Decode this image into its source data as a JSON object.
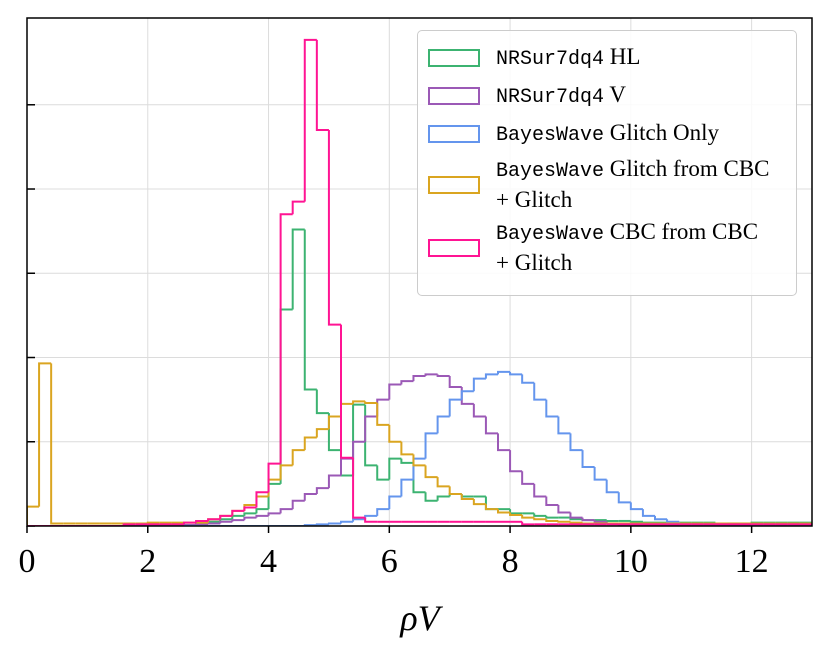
{
  "chart_data": {
    "type": "histogram",
    "xlabel": "ρV",
    "bins": [
      0,
      0.2,
      0.4,
      0.6,
      0.8,
      1.0,
      1.2,
      1.4,
      1.6,
      1.8,
      2.0,
      2.2,
      2.4,
      2.6,
      2.8,
      3.0,
      3.2,
      3.4,
      3.6,
      3.8,
      4.0,
      4.2,
      4.4,
      4.6,
      4.8,
      5.0,
      5.2,
      5.4,
      5.6,
      5.8,
      6.0,
      6.2,
      6.4,
      6.6,
      6.8,
      7.0,
      7.2,
      7.4,
      7.6,
      7.8,
      8.0,
      8.2,
      8.4,
      8.6,
      8.8,
      9.0,
      9.2,
      9.4,
      9.6,
      9.8,
      10.0,
      10.2,
      10.4,
      10.6,
      10.8,
      11.0,
      11.2,
      11.4,
      11.6,
      11.8,
      12.0,
      12.2,
      12.4,
      12.6,
      12.8,
      13.0
    ],
    "xlim": [
      0,
      13
    ],
    "xticks": [
      0,
      2,
      4,
      6,
      8,
      10,
      12
    ],
    "ylim": [
      0,
      6.03
    ],
    "yticks": [
      0,
      1,
      2,
      3,
      4,
      5
    ],
    "grid": true,
    "series": [
      {
        "name": "NRSur7dq4 HL",
        "color": "#3cb371",
        "values": [
          0,
          0,
          0,
          0,
          0,
          0,
          0,
          0,
          0,
          0,
          0.01,
          0.01,
          0.01,
          0.01,
          0.03,
          0.05,
          0.08,
          0.12,
          0.15,
          0.2,
          0.5,
          2.57,
          3.52,
          1.62,
          1.34,
          0.9,
          0.6,
          1.44,
          0.72,
          0.55,
          0.8,
          0.75,
          0.4,
          0.3,
          0.35,
          0.38,
          0.35,
          0.35,
          0.2,
          0.2,
          0.15,
          0.15,
          0.12,
          0.1,
          0.1,
          0.08,
          0.07,
          0.07,
          0.06,
          0.06,
          0.05,
          0.04,
          0.04,
          0.04,
          0.04,
          0.04,
          0.04,
          0.03,
          0.03,
          0.03,
          0.04,
          0.04,
          0.04,
          0.04,
          0.04
        ]
      },
      {
        "name": "NRSur7dq4 V",
        "color": "#9b59b6",
        "values": [
          0,
          0,
          0,
          0,
          0,
          0,
          0,
          0,
          0,
          0,
          0,
          0,
          0,
          0.01,
          0.02,
          0.03,
          0.05,
          0.07,
          0.1,
          0.12,
          0.15,
          0.2,
          0.3,
          0.38,
          0.45,
          0.6,
          0.8,
          1.0,
          1.3,
          1.5,
          1.68,
          1.72,
          1.78,
          1.8,
          1.78,
          1.65,
          1.45,
          1.3,
          1.1,
          0.9,
          0.65,
          0.5,
          0.35,
          0.25,
          0.16,
          0.1,
          0.07,
          0.05,
          0.03,
          0.02,
          0.01,
          0.01,
          0.01,
          0.01,
          0.01,
          0.01,
          0.01,
          0.01,
          0.01,
          0.01,
          0.01,
          0.01,
          0.01,
          0.01,
          0.01
        ]
      },
      {
        "name": "BayesWave Glitch Only",
        "color": "#6495ed",
        "values": [
          0,
          0,
          0,
          0,
          0,
          0,
          0,
          0,
          0,
          0,
          0,
          0,
          0,
          0,
          0,
          0,
          0,
          0,
          0,
          0,
          0,
          0,
          0,
          0.01,
          0.02,
          0.03,
          0.05,
          0.08,
          0.12,
          0.2,
          0.35,
          0.55,
          0.8,
          1.1,
          1.3,
          1.5,
          1.6,
          1.75,
          1.8,
          1.83,
          1.8,
          1.7,
          1.5,
          1.3,
          1.1,
          0.9,
          0.7,
          0.55,
          0.4,
          0.28,
          0.2,
          0.12,
          0.08,
          0.05,
          0.03,
          0.02,
          0.01,
          0.01,
          0.01,
          0.01,
          0.01,
          0.01,
          0.01,
          0.01,
          0.01
        ]
      },
      {
        "name": "BayesWave Glitch from CBC + Glitch",
        "color": "#daa520",
        "values": [
          0.23,
          1.93,
          0.03,
          0.03,
          0.03,
          0.03,
          0.03,
          0.03,
          0.03,
          0.03,
          0.04,
          0.04,
          0.04,
          0.04,
          0.04,
          0.08,
          0.12,
          0.18,
          0.25,
          0.35,
          0.55,
          0.72,
          0.9,
          1.05,
          1.15,
          1.3,
          1.45,
          1.48,
          1.46,
          1.2,
          1.0,
          0.85,
          0.72,
          0.58,
          0.47,
          0.38,
          0.32,
          0.26,
          0.2,
          0.16,
          0.13,
          0.1,
          0.08,
          0.06,
          0.05,
          0.04,
          0.03,
          0.03,
          0.03,
          0.03,
          0.03,
          0.03,
          0.03,
          0.03,
          0.03,
          0.03,
          0.03,
          0.03,
          0.03,
          0.03,
          0.03,
          0.03,
          0.03,
          0.03,
          0.03
        ]
      },
      {
        "name": "BayesWave CBC from CBC + Glitch",
        "color": "#ff1493",
        "values": [
          0,
          0,
          0,
          0,
          0,
          0,
          0,
          0,
          0.02,
          0.02,
          0.02,
          0.02,
          0.02,
          0.04,
          0.06,
          0.08,
          0.12,
          0.18,
          0.22,
          0.4,
          0.74,
          3.7,
          3.85,
          5.77,
          4.7,
          2.39,
          0.81,
          0.1,
          0.05,
          0.05,
          0.05,
          0.05,
          0.05,
          0.05,
          0.05,
          0.05,
          0.05,
          0.05,
          0.05,
          0.05,
          0.05,
          0.02,
          0.02,
          0.02,
          0.02,
          0.02,
          0.02,
          0.02,
          0.02,
          0.02,
          0.02,
          0.02,
          0.02,
          0.02,
          0.02,
          0.02,
          0.02,
          0.02,
          0.02,
          0.02,
          0.02,
          0.02,
          0.02,
          0.02,
          0.02
        ]
      }
    ]
  }
}
